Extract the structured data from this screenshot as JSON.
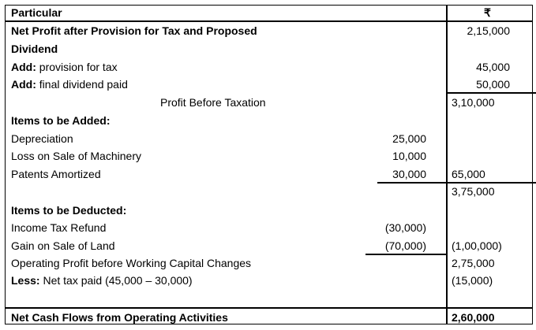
{
  "header": {
    "particular": "Particular",
    "currency": "₹"
  },
  "rows": {
    "net_profit": {
      "label": "Net Profit after Provision for Tax and Proposed",
      "label2": "Dividend",
      "amount": "2,15,000"
    },
    "add_tax": {
      "prefix": "Add:",
      "label": " provision for tax",
      "amount": "45,000"
    },
    "add_div": {
      "prefix": "Add:",
      "label": " final dividend paid",
      "amount": "50,000"
    },
    "pbt": {
      "label": "Profit Before Taxation",
      "amount": "3,10,000"
    },
    "added_heading": "Items to be Added:",
    "depreciation": {
      "label": "Depreciation",
      "amount": "25,000"
    },
    "loss_machinery": {
      "label": "Loss on Sale of Machinery",
      "amount": "10,000"
    },
    "patents": {
      "label": "Patents Amortized",
      "amount": "30,000",
      "total": "65,000"
    },
    "subtotal": "3,75,000",
    "deducted_heading": "Items to be Deducted:",
    "tax_refund": {
      "label": "Income Tax Refund",
      "amount": "(30,000)"
    },
    "gain_land": {
      "label": "Gain on Sale of Land",
      "amount": "(70,000)",
      "total": "(1,00,000)"
    },
    "op_profit": {
      "label": "Operating Profit before Working Capital Changes",
      "amount": "2,75,000"
    },
    "less_tax": {
      "prefix": "Less:",
      "label": " Net tax paid (45,000 – 30,000)",
      "amount": "(15,000)"
    },
    "net_cash": {
      "label": "Net Cash Flows from Operating Activities",
      "amount": "2,60,000"
    }
  }
}
